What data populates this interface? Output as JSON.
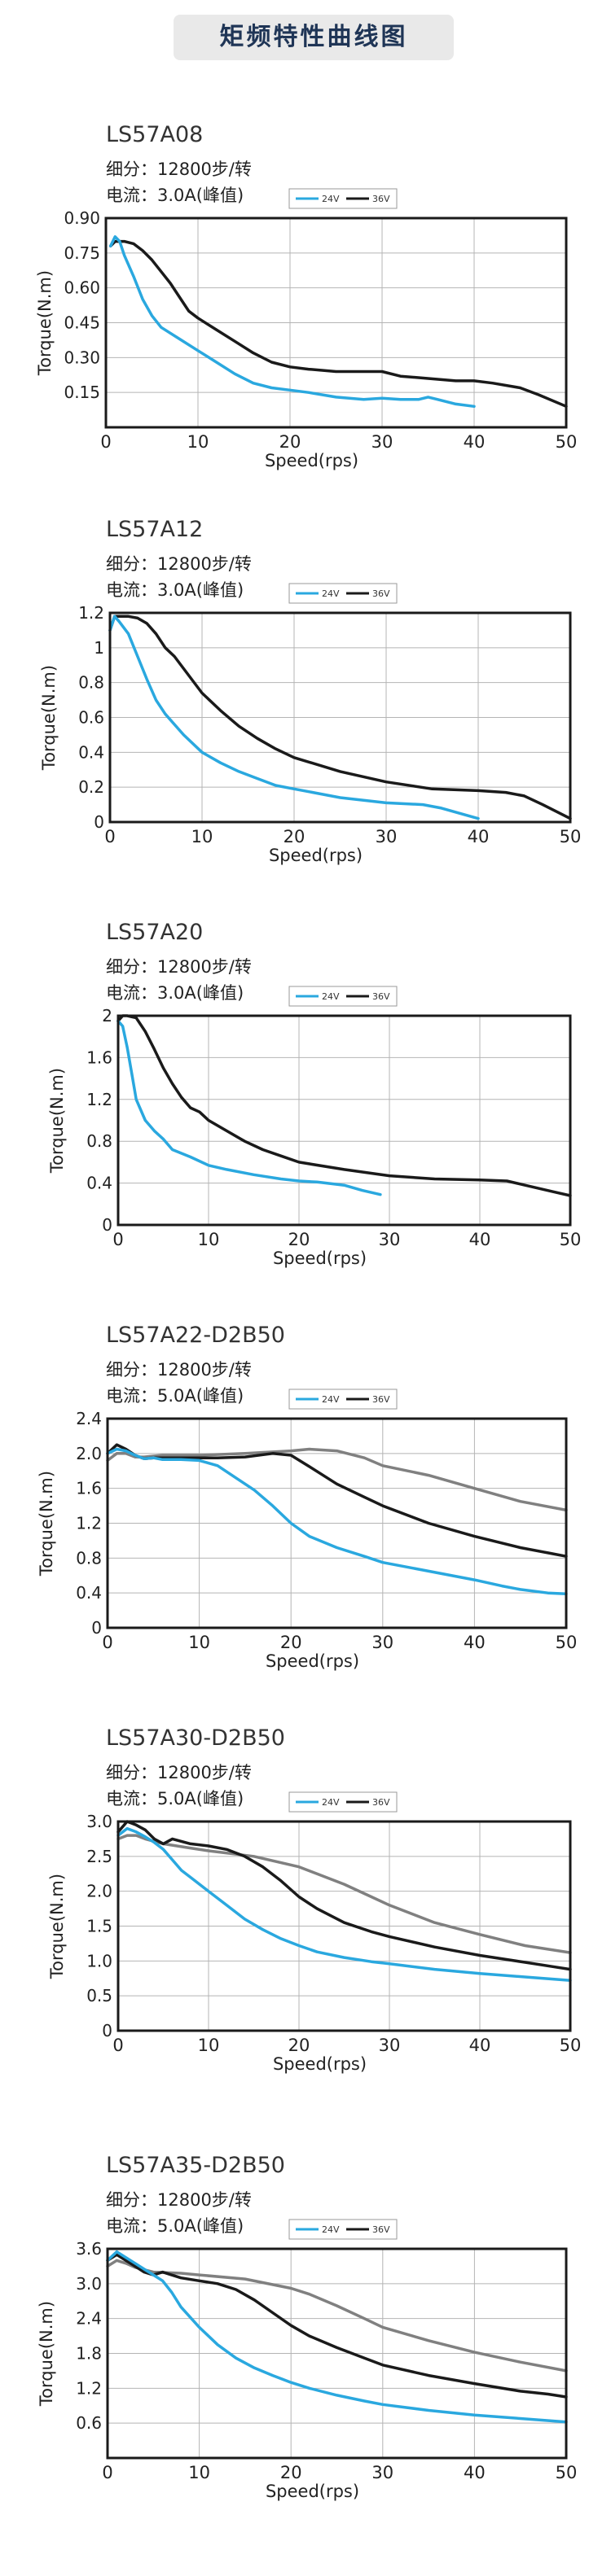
{
  "page_title": "矩频特性曲线图",
  "colors": {
    "v24": "#2aa8df",
    "v36": "#1a1a1a",
    "extra": "#808080",
    "grid": "#b4b4b4",
    "title_bg": "#e9e9e9",
    "title_text": "#1f3556"
  },
  "chart_data": [
    {
      "type": "line",
      "title": "LS57A08",
      "spec_steps": "细分：12800步/转",
      "spec_current": "电流：3.0A(峰值)",
      "xlabel": "Speed(rps)",
      "ylabel": "Torque(N.m)",
      "xlim": [
        0,
        50
      ],
      "ylim": [
        0,
        0.9
      ],
      "xticks": [
        0,
        10,
        20,
        30,
        40,
        50
      ],
      "xtick_labels": [
        "0",
        "10",
        "20",
        "30",
        "40",
        "50"
      ],
      "yticks": [
        0.15,
        0.3,
        0.45,
        0.6,
        0.75,
        0.9
      ],
      "ytick_labels": [
        "0.15",
        "0.30",
        "0.45",
        "0.60",
        "0.75",
        "0.90"
      ],
      "legend": [
        "24V",
        "36V"
      ],
      "legend_position": "top-right",
      "grid": true,
      "series": [
        {
          "name": "24V",
          "color": "#2aa8df",
          "x": [
            0.5,
            1,
            1.5,
            2,
            3,
            4,
            5,
            6,
            8,
            10,
            12,
            14,
            16,
            18,
            20,
            22,
            25,
            28,
            30,
            32,
            34,
            35,
            36,
            37,
            38,
            40
          ],
          "y": [
            0.78,
            0.82,
            0.8,
            0.74,
            0.65,
            0.55,
            0.48,
            0.43,
            0.38,
            0.33,
            0.28,
            0.23,
            0.19,
            0.17,
            0.16,
            0.15,
            0.13,
            0.12,
            0.125,
            0.12,
            0.12,
            0.13,
            0.12,
            0.11,
            0.1,
            0.09
          ]
        },
        {
          "name": "36V",
          "color": "#1a1a1a",
          "x": [
            0.5,
            1,
            2,
            3,
            4,
            5,
            6,
            7,
            8,
            9,
            10,
            12,
            14,
            16,
            18,
            20,
            22,
            25,
            28,
            30,
            32,
            35,
            38,
            40,
            42,
            45,
            47,
            50
          ],
          "y": [
            0.78,
            0.8,
            0.8,
            0.79,
            0.76,
            0.72,
            0.67,
            0.62,
            0.56,
            0.5,
            0.47,
            0.42,
            0.37,
            0.32,
            0.28,
            0.26,
            0.25,
            0.24,
            0.24,
            0.24,
            0.22,
            0.21,
            0.2,
            0.2,
            0.19,
            0.17,
            0.14,
            0.09
          ]
        }
      ]
    },
    {
      "type": "line",
      "title": "LS57A12",
      "spec_steps": "细分：12800步/转",
      "spec_current": "电流：3.0A(峰值)",
      "xlabel": "Speed(rps)",
      "ylabel": "Torque(N.m)",
      "xlim": [
        0,
        50
      ],
      "ylim": [
        0,
        1.2
      ],
      "xticks": [
        0,
        10,
        20,
        30,
        40,
        50
      ],
      "xtick_labels": [
        "0",
        "10",
        "20",
        "30",
        "40",
        "50"
      ],
      "yticks": [
        0,
        0.2,
        0.4,
        0.6,
        0.8,
        1.0,
        1.2
      ],
      "ytick_labels": [
        "0",
        "0.2",
        "0.4",
        "0.6",
        "0.8",
        "1",
        "1.2"
      ],
      "legend": [
        "24V",
        "36V"
      ],
      "legend_position": "top-right",
      "grid": true,
      "series": [
        {
          "name": "24V",
          "color": "#2aa8df",
          "x": [
            0,
            0.5,
            1,
            2,
            3,
            4,
            5,
            6,
            8,
            10,
            12,
            14,
            16,
            18,
            20,
            25,
            30,
            34,
            36,
            38,
            40
          ],
          "y": [
            1.1,
            1.18,
            1.15,
            1.08,
            0.95,
            0.82,
            0.7,
            0.62,
            0.5,
            0.4,
            0.34,
            0.29,
            0.25,
            0.21,
            0.19,
            0.14,
            0.11,
            0.1,
            0.08,
            0.05,
            0.02
          ]
        },
        {
          "name": "36V",
          "color": "#1a1a1a",
          "x": [
            0,
            0.5,
            1,
            2,
            3,
            4,
            5,
            6,
            7,
            8,
            10,
            12,
            14,
            16,
            18,
            20,
            25,
            30,
            35,
            40,
            43,
            45,
            47,
            50
          ],
          "y": [
            1.1,
            1.18,
            1.18,
            1.18,
            1.17,
            1.14,
            1.08,
            1.0,
            0.95,
            0.88,
            0.74,
            0.64,
            0.55,
            0.48,
            0.42,
            0.37,
            0.29,
            0.23,
            0.19,
            0.18,
            0.17,
            0.15,
            0.1,
            0.02
          ]
        }
      ]
    },
    {
      "type": "line",
      "title": "LS57A20",
      "spec_steps": "细分：12800步/转",
      "spec_current": "电流：3.0A(峰值)",
      "xlabel": "Speed(rps)",
      "ylabel": "Torque(N.m)",
      "xlim": [
        0,
        50
      ],
      "ylim": [
        0,
        2
      ],
      "xticks": [
        0,
        10,
        20,
        30,
        40,
        50
      ],
      "xtick_labels": [
        "0",
        "10",
        "20",
        "30",
        "40",
        "50"
      ],
      "yticks": [
        0,
        0.4,
        0.8,
        1.2,
        1.6,
        2.0
      ],
      "ytick_labels": [
        "0",
        "0.4",
        "0.8",
        "1.2",
        "1.6",
        "2"
      ],
      "legend": [
        "24V",
        "36V"
      ],
      "legend_position": "top-right",
      "grid": true,
      "series": [
        {
          "name": "24V",
          "color": "#2aa8df",
          "x": [
            0,
            0.5,
            1,
            1.5,
            2,
            3,
            4,
            5,
            6,
            8,
            10,
            12,
            15,
            18,
            20,
            22,
            25,
            27,
            29
          ],
          "y": [
            1.95,
            1.9,
            1.7,
            1.45,
            1.2,
            1.0,
            0.9,
            0.82,
            0.72,
            0.65,
            0.57,
            0.53,
            0.48,
            0.44,
            0.42,
            0.41,
            0.38,
            0.33,
            0.29
          ]
        },
        {
          "name": "36V",
          "color": "#1a1a1a",
          "x": [
            0,
            0.5,
            1,
            2,
            3,
            4,
            5,
            6,
            7,
            8,
            9,
            10,
            12,
            14,
            16,
            18,
            20,
            25,
            30,
            35,
            40,
            43,
            45,
            48,
            50
          ],
          "y": [
            1.95,
            2.0,
            2.0,
            1.98,
            1.85,
            1.68,
            1.5,
            1.35,
            1.22,
            1.12,
            1.08,
            1.0,
            0.9,
            0.8,
            0.72,
            0.66,
            0.6,
            0.53,
            0.47,
            0.44,
            0.43,
            0.42,
            0.38,
            0.32,
            0.28
          ]
        }
      ]
    },
    {
      "type": "line",
      "title": "LS57A22-D2B50",
      "spec_steps": "细分：12800步/转",
      "spec_current": "电流：5.0A(峰值)",
      "xlabel": "Speed(rps)",
      "ylabel": "Torque(N.m)",
      "xlim": [
        0,
        50
      ],
      "ylim": [
        0,
        2.4
      ],
      "xticks": [
        0,
        10,
        20,
        30,
        40,
        50
      ],
      "xtick_labels": [
        "0",
        "10",
        "20",
        "30",
        "40",
        "50"
      ],
      "yticks": [
        0,
        0.4,
        0.8,
        1.2,
        1.6,
        2.0,
        2.4
      ],
      "ytick_labels": [
        "0",
        "0.4",
        "0.8",
        "1.2",
        "1.6",
        "2.0",
        "2.4"
      ],
      "legend": [
        "24V",
        "36V"
      ],
      "legend_position": "top-right",
      "grid": true,
      "series": [
        {
          "name": "24V",
          "color": "#2aa8df",
          "x": [
            0,
            1,
            2,
            3,
            4,
            5,
            6,
            8,
            10,
            12,
            14,
            16,
            18,
            20,
            22,
            25,
            28,
            30,
            35,
            40,
            43,
            45,
            48,
            50
          ],
          "y": [
            2.0,
            2.05,
            2.03,
            1.98,
            1.94,
            1.95,
            1.93,
            1.93,
            1.92,
            1.86,
            1.72,
            1.58,
            1.4,
            1.2,
            1.05,
            0.92,
            0.82,
            0.75,
            0.65,
            0.55,
            0.48,
            0.44,
            0.4,
            0.39
          ]
        },
        {
          "name": "36V",
          "color": "#1a1a1a",
          "x": [
            0,
            1,
            2,
            3,
            4,
            5,
            6,
            8,
            10,
            12,
            15,
            18,
            20,
            22,
            25,
            28,
            30,
            35,
            40,
            45,
            48,
            50
          ],
          "y": [
            2.0,
            2.1,
            2.05,
            1.98,
            1.94,
            1.95,
            1.95,
            1.95,
            1.95,
            1.95,
            1.96,
            2.0,
            1.98,
            1.85,
            1.65,
            1.5,
            1.4,
            1.2,
            1.05,
            0.92,
            0.86,
            0.82
          ]
        },
        {
          "name": "",
          "color": "#808080",
          "x": [
            0,
            1,
            2,
            3,
            4,
            5,
            6,
            8,
            10,
            15,
            20,
            22,
            25,
            28,
            30,
            35,
            40,
            45,
            50
          ],
          "y": [
            1.92,
            2.0,
            2.0,
            1.96,
            1.96,
            1.97,
            1.98,
            1.98,
            1.98,
            2.0,
            2.03,
            2.05,
            2.03,
            1.95,
            1.86,
            1.75,
            1.6,
            1.45,
            1.35
          ]
        }
      ]
    },
    {
      "type": "line",
      "title": "LS57A30-D2B50",
      "spec_steps": "细分：12800步/转",
      "spec_current": "电流：5.0A(峰值)",
      "xlabel": "Speed(rps)",
      "ylabel": "Torque(N.m)",
      "xlim": [
        0,
        50
      ],
      "ylim": [
        0,
        3
      ],
      "xticks": [
        0,
        10,
        20,
        30,
        40,
        50
      ],
      "xtick_labels": [
        "0",
        "10",
        "20",
        "30",
        "40",
        "50"
      ],
      "yticks": [
        0,
        0.5,
        1.0,
        1.5,
        2.0,
        2.5,
        3.0
      ],
      "ytick_labels": [
        "0",
        "0.5",
        "1.0",
        "1.5",
        "2.0",
        "2.5",
        "3.0"
      ],
      "legend": [
        "24V",
        "36V"
      ],
      "legend_position": "top-right",
      "grid": true,
      "series": [
        {
          "name": "24V",
          "color": "#2aa8df",
          "x": [
            0,
            1,
            2,
            3,
            4,
            5,
            6,
            7,
            8,
            10,
            12,
            14,
            16,
            18,
            20,
            22,
            25,
            28,
            30,
            35,
            40,
            45,
            50
          ],
          "y": [
            2.8,
            2.9,
            2.85,
            2.78,
            2.7,
            2.6,
            2.45,
            2.3,
            2.2,
            2.0,
            1.8,
            1.6,
            1.45,
            1.32,
            1.22,
            1.13,
            1.05,
            0.99,
            0.96,
            0.88,
            0.82,
            0.77,
            0.72
          ]
        },
        {
          "name": "36V",
          "color": "#1a1a1a",
          "x": [
            0,
            1,
            2,
            3,
            4,
            5,
            6,
            8,
            10,
            12,
            14,
            16,
            18,
            20,
            22,
            25,
            28,
            30,
            35,
            40,
            45,
            48,
            50
          ],
          "y": [
            2.85,
            3.0,
            2.95,
            2.88,
            2.75,
            2.68,
            2.75,
            2.68,
            2.65,
            2.6,
            2.5,
            2.35,
            2.15,
            1.92,
            1.75,
            1.55,
            1.42,
            1.35,
            1.2,
            1.08,
            0.98,
            0.92,
            0.88
          ]
        },
        {
          "name": "",
          "color": "#808080",
          "x": [
            0,
            1,
            2,
            3,
            5,
            8,
            10,
            15,
            20,
            22,
            25,
            28,
            30,
            35,
            40,
            45,
            50
          ],
          "y": [
            2.75,
            2.8,
            2.8,
            2.75,
            2.68,
            2.62,
            2.58,
            2.5,
            2.35,
            2.25,
            2.1,
            1.92,
            1.8,
            1.55,
            1.38,
            1.22,
            1.12
          ]
        }
      ]
    },
    {
      "type": "line",
      "title": "LS57A35-D2B50",
      "spec_steps": "细分：12800步/转",
      "spec_current": "电流：5.0A(峰值)",
      "xlabel": "Speed(rps)",
      "ylabel": "Torque(N.m)",
      "xlim": [
        0,
        50
      ],
      "ylim": [
        0,
        3.6
      ],
      "xticks": [
        0,
        10,
        20,
        30,
        40,
        50
      ],
      "xtick_labels": [
        "0",
        "10",
        "20",
        "30",
        "40",
        "50"
      ],
      "yticks": [
        0.6,
        1.2,
        1.8,
        2.4,
        3.0,
        3.6
      ],
      "ytick_labels": [
        "0.6",
        "1.2",
        "1.8",
        "2.4",
        "3.0",
        "3.6"
      ],
      "legend": [
        "24V",
        "36V"
      ],
      "legend_position": "top-right",
      "grid": true,
      "series": [
        {
          "name": "24V",
          "color": "#2aa8df",
          "x": [
            0,
            1,
            2,
            3,
            4,
            5,
            6,
            7,
            8,
            10,
            12,
            14,
            16,
            18,
            20,
            22,
            25,
            28,
            30,
            35,
            40,
            45,
            50
          ],
          "y": [
            3.4,
            3.55,
            3.45,
            3.35,
            3.25,
            3.15,
            3.05,
            2.85,
            2.6,
            2.25,
            1.95,
            1.72,
            1.55,
            1.42,
            1.3,
            1.2,
            1.08,
            0.98,
            0.92,
            0.82,
            0.74,
            0.68,
            0.62
          ]
        },
        {
          "name": "36V",
          "color": "#1a1a1a",
          "x": [
            0,
            1,
            2,
            3,
            4,
            5,
            6,
            8,
            10,
            12,
            14,
            16,
            18,
            20,
            22,
            25,
            28,
            30,
            35,
            40,
            45,
            48,
            50
          ],
          "y": [
            3.4,
            3.5,
            3.4,
            3.3,
            3.2,
            3.15,
            3.2,
            3.1,
            3.05,
            3.0,
            2.9,
            2.72,
            2.5,
            2.28,
            2.1,
            1.9,
            1.72,
            1.6,
            1.42,
            1.28,
            1.15,
            1.1,
            1.05
          ]
        },
        {
          "name": "",
          "color": "#808080",
          "x": [
            0,
            1,
            2,
            3,
            5,
            8,
            10,
            15,
            20,
            22,
            25,
            28,
            30,
            35,
            40,
            45,
            50
          ],
          "y": [
            3.3,
            3.4,
            3.35,
            3.28,
            3.2,
            3.18,
            3.15,
            3.08,
            2.92,
            2.82,
            2.62,
            2.4,
            2.25,
            2.02,
            1.82,
            1.65,
            1.5
          ]
        }
      ]
    }
  ]
}
